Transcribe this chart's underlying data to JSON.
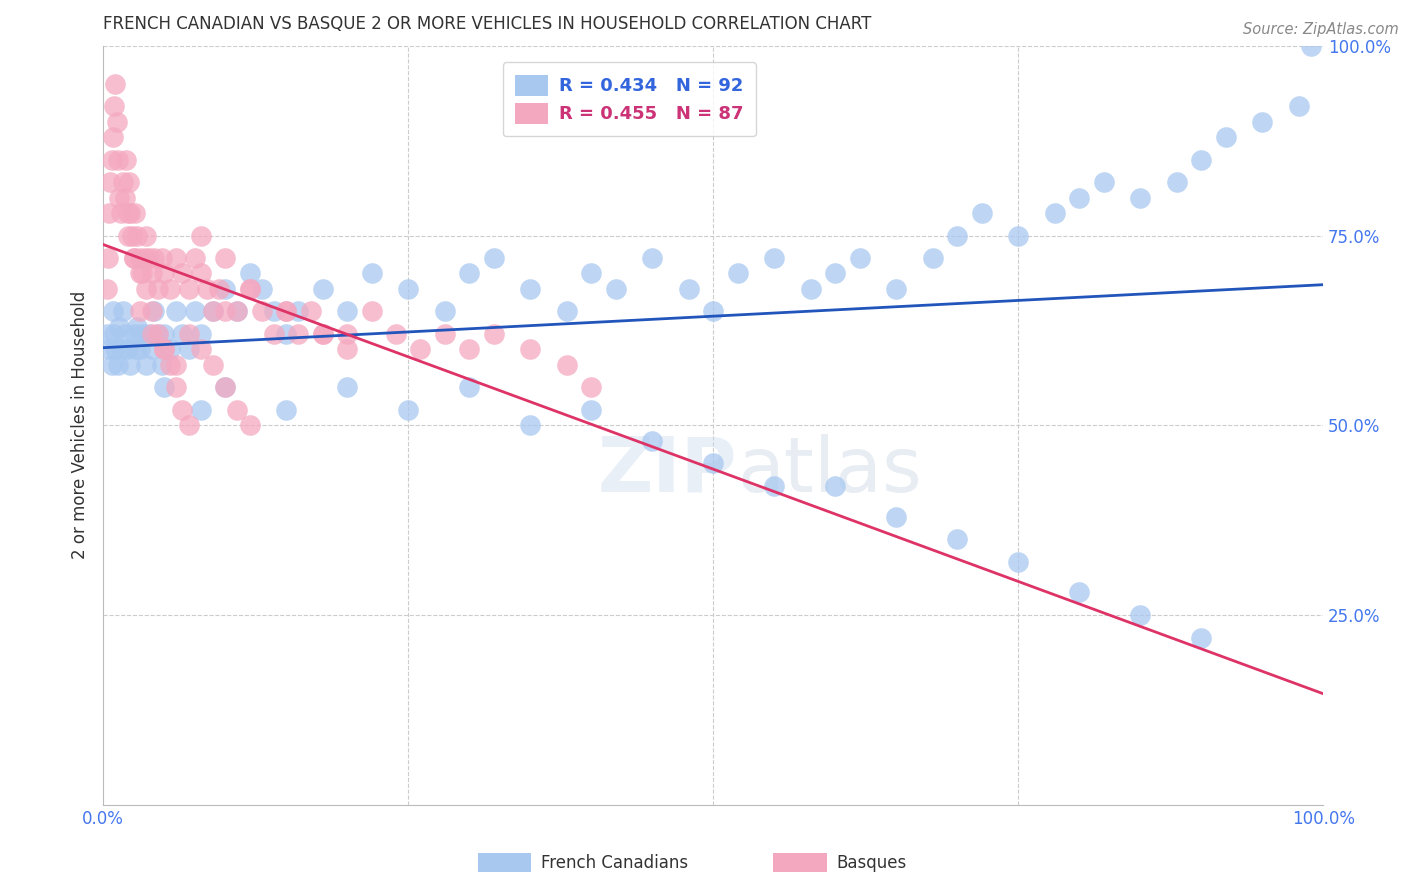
{
  "title": "FRENCH CANADIAN VS BASQUE 2 OR MORE VEHICLES IN HOUSEHOLD CORRELATION CHART",
  "source": "Source: ZipAtlas.com",
  "ylabel": "2 or more Vehicles in Household",
  "watermark_zip": "ZIP",
  "watermark_atlas": "atlas",
  "xlim": [
    0,
    1
  ],
  "ylim": [
    0,
    1
  ],
  "blue_R": 0.434,
  "blue_N": 92,
  "pink_R": 0.455,
  "pink_N": 87,
  "blue_color": "#a8c8f0",
  "pink_color": "#f4a8c0",
  "blue_line_color": "#2255bb",
  "pink_line_color": "#dd3366",
  "legend_blue_text_color": "#3366dd",
  "legend_pink_text_color": "#cc3377",
  "title_color": "#333333",
  "source_color": "#888888",
  "ylabel_color": "#333333",
  "ytick_color": "#4477ee",
  "xtick_color": "#4477ee",
  "grid_color": "#cccccc",
  "blue_x": [
    0.003,
    0.005,
    0.007,
    0.008,
    0.009,
    0.01,
    0.012,
    0.013,
    0.015,
    0.016,
    0.018,
    0.02,
    0.022,
    0.025,
    0.027,
    0.028,
    0.03,
    0.032,
    0.035,
    0.038,
    0.04,
    0.042,
    0.045,
    0.048,
    0.05,
    0.055,
    0.06,
    0.065,
    0.07,
    0.075,
    0.08,
    0.09,
    0.1,
    0.11,
    0.12,
    0.13,
    0.14,
    0.15,
    0.16,
    0.18,
    0.2,
    0.22,
    0.25,
    0.28,
    0.3,
    0.32,
    0.35,
    0.38,
    0.4,
    0.42,
    0.45,
    0.48,
    0.5,
    0.52,
    0.55,
    0.58,
    0.6,
    0.62,
    0.65,
    0.68,
    0.7,
    0.72,
    0.75,
    0.78,
    0.8,
    0.82,
    0.85,
    0.88,
    0.9,
    0.92,
    0.95,
    0.98,
    0.99,
    0.05,
    0.08,
    0.1,
    0.15,
    0.2,
    0.25,
    0.3,
    0.35,
    0.4,
    0.45,
    0.5,
    0.55,
    0.6,
    0.65,
    0.7,
    0.75,
    0.8,
    0.85,
    0.9
  ],
  "blue_y": [
    0.62,
    0.6,
    0.58,
    0.65,
    0.62,
    0.6,
    0.58,
    0.63,
    0.6,
    0.65,
    0.62,
    0.6,
    0.58,
    0.62,
    0.6,
    0.63,
    0.6,
    0.62,
    0.58,
    0.62,
    0.6,
    0.65,
    0.62,
    0.58,
    0.62,
    0.6,
    0.65,
    0.62,
    0.6,
    0.65,
    0.62,
    0.65,
    0.68,
    0.65,
    0.7,
    0.68,
    0.65,
    0.62,
    0.65,
    0.68,
    0.65,
    0.7,
    0.68,
    0.65,
    0.7,
    0.72,
    0.68,
    0.65,
    0.7,
    0.68,
    0.72,
    0.68,
    0.65,
    0.7,
    0.72,
    0.68,
    0.7,
    0.72,
    0.68,
    0.72,
    0.75,
    0.78,
    0.75,
    0.78,
    0.8,
    0.82,
    0.8,
    0.82,
    0.85,
    0.88,
    0.9,
    0.92,
    1.0,
    0.55,
    0.52,
    0.55,
    0.52,
    0.55,
    0.52,
    0.55,
    0.5,
    0.52,
    0.48,
    0.45,
    0.42,
    0.42,
    0.38,
    0.35,
    0.32,
    0.28,
    0.25,
    0.22
  ],
  "pink_x": [
    0.003,
    0.004,
    0.005,
    0.006,
    0.007,
    0.008,
    0.009,
    0.01,
    0.011,
    0.012,
    0.013,
    0.015,
    0.016,
    0.018,
    0.019,
    0.02,
    0.021,
    0.022,
    0.024,
    0.025,
    0.026,
    0.028,
    0.03,
    0.032,
    0.034,
    0.035,
    0.038,
    0.04,
    0.042,
    0.045,
    0.048,
    0.05,
    0.055,
    0.06,
    0.065,
    0.07,
    0.075,
    0.08,
    0.085,
    0.09,
    0.095,
    0.1,
    0.11,
    0.12,
    0.13,
    0.14,
    0.15,
    0.16,
    0.17,
    0.18,
    0.2,
    0.22,
    0.24,
    0.26,
    0.28,
    0.3,
    0.32,
    0.35,
    0.38,
    0.4,
    0.08,
    0.1,
    0.12,
    0.15,
    0.18,
    0.2,
    0.03,
    0.04,
    0.05,
    0.06,
    0.07,
    0.08,
    0.09,
    0.1,
    0.11,
    0.12,
    0.02,
    0.025,
    0.03,
    0.035,
    0.04,
    0.045,
    0.05,
    0.055,
    0.06,
    0.065,
    0.07
  ],
  "pink_y": [
    0.68,
    0.72,
    0.78,
    0.82,
    0.85,
    0.88,
    0.92,
    0.95,
    0.9,
    0.85,
    0.8,
    0.78,
    0.82,
    0.8,
    0.85,
    0.78,
    0.82,
    0.78,
    0.75,
    0.72,
    0.78,
    0.75,
    0.72,
    0.7,
    0.72,
    0.75,
    0.72,
    0.7,
    0.72,
    0.68,
    0.72,
    0.7,
    0.68,
    0.72,
    0.7,
    0.68,
    0.72,
    0.7,
    0.68,
    0.65,
    0.68,
    0.65,
    0.65,
    0.68,
    0.65,
    0.62,
    0.65,
    0.62,
    0.65,
    0.62,
    0.62,
    0.65,
    0.62,
    0.6,
    0.62,
    0.6,
    0.62,
    0.6,
    0.58,
    0.55,
    0.75,
    0.72,
    0.68,
    0.65,
    0.62,
    0.6,
    0.65,
    0.62,
    0.6,
    0.58,
    0.62,
    0.6,
    0.58,
    0.55,
    0.52,
    0.5,
    0.75,
    0.72,
    0.7,
    0.68,
    0.65,
    0.62,
    0.6,
    0.58,
    0.55,
    0.52,
    0.5
  ]
}
